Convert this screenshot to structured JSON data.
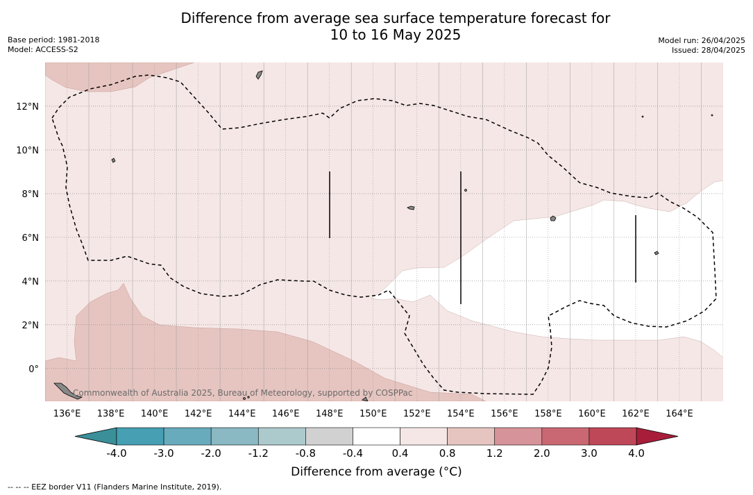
{
  "title_line1": "Difference from average sea surface temperature forecast for",
  "title_line2": "10 to 16 May 2025",
  "meta_left": {
    "base_period": "Base period: 1981-2018",
    "model": "Model: ACCESS-S2"
  },
  "meta_right": {
    "model_run": "Model run: 26/04/2025",
    "issued": "Issued: 28/04/2025"
  },
  "map": {
    "lon_range": [
      135,
      166
    ],
    "lat_range": [
      -1.5,
      14
    ],
    "lon_ticks": [
      "136°E",
      "138°E",
      "140°E",
      "142°E",
      "144°E",
      "146°E",
      "148°E",
      "150°E",
      "152°E",
      "154°E",
      "156°E",
      "158°E",
      "160°E",
      "162°E",
      "164°E"
    ],
    "lat_ticks": [
      "12°N",
      "10°N",
      "8°N",
      "6°N",
      "4°N",
      "2°N",
      "0°"
    ],
    "copyright": "Commonwealth of Australia 2025, Bureau of Meteorology, supported by COSPPac"
  },
  "colorbar": {
    "tick_labels": [
      "-4.0",
      "-3.0",
      "-2.0",
      "-1.2",
      "-0.8",
      "-0.4",
      "0.4",
      "0.8",
      "1.2",
      "2.0",
      "3.0",
      "4.0"
    ],
    "colors": [
      "#469fb2",
      "#68abbd",
      "#8ab8c3",
      "#acc9cc",
      "#d1d1d1",
      "#ffffff",
      "#f5e7e6",
      "#e6c5c0",
      "#d6939a",
      "#c96872",
      "#be4758"
    ],
    "under_color": "#3a8f99",
    "over_color": "#a81e3a",
    "label": "Difference from average (°C)"
  },
  "footnote": "--  --  -- EEZ border V11 (Flanders Marine Institute, 2019)."
}
